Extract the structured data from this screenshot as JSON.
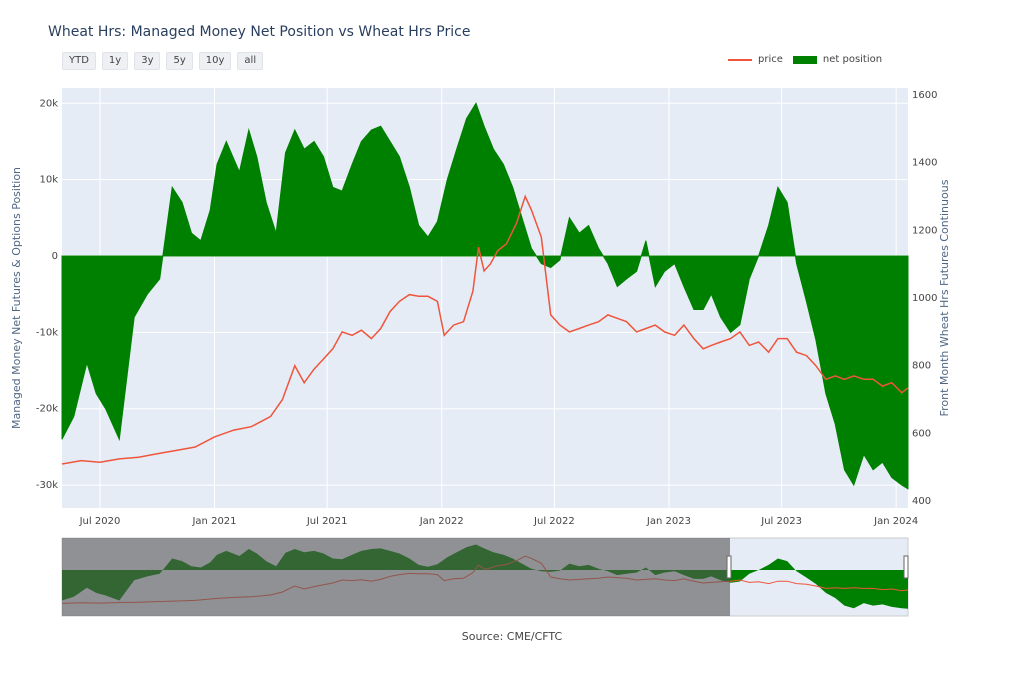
{
  "title": "Wheat Hrs: Managed Money Net Position vs Wheat Hrs Price",
  "range_buttons": [
    "YTD",
    "1y",
    "3y",
    "5y",
    "10y",
    "all"
  ],
  "legend": {
    "price": "price",
    "net": "net position"
  },
  "source": "Source: CME/CFTC",
  "colors": {
    "price": "#ef553b",
    "net": "#008000",
    "plot_bg": "#e5ecf6"
  },
  "chart_data": {
    "type": "line",
    "x_ticks": [
      "Jul 2020",
      "Jan 2021",
      "Jul 2021",
      "Jan 2022",
      "Jul 2022",
      "Jan 2023",
      "Jul 2023",
      "Jan 2024"
    ],
    "y_left": {
      "label": "Managed Money Net Futures & Options Position",
      "ticks": [
        "20k",
        "10k",
        "0",
        "-10k",
        "-20k",
        "-30k"
      ],
      "range": [
        -33000,
        22000
      ]
    },
    "y_right": {
      "label": "Front Month Wheat Hrs Futures Continuous",
      "ticks": [
        "1600",
        "1400",
        "1200",
        "1000",
        "800",
        "600",
        "400"
      ],
      "range": [
        380,
        1620
      ]
    },
    "x_range": [
      "2020-05-01",
      "2024-01-20"
    ],
    "series": [
      {
        "name": "net position",
        "axis": "left",
        "style": "area",
        "x": [
          "2020-05-01",
          "2020-05-20",
          "2020-06-10",
          "2020-06-25",
          "2020-07-10",
          "2020-08-01",
          "2020-08-25",
          "2020-09-15",
          "2020-10-05",
          "2020-10-25",
          "2020-11-10",
          "2020-11-25",
          "2020-12-10",
          "2020-12-25",
          "2021-01-05",
          "2021-01-20",
          "2021-02-10",
          "2021-02-25",
          "2021-03-10",
          "2021-03-25",
          "2021-04-10",
          "2021-04-25",
          "2021-05-10",
          "2021-05-25",
          "2021-06-10",
          "2021-06-25",
          "2021-07-10",
          "2021-07-25",
          "2021-08-10",
          "2021-08-25",
          "2021-09-10",
          "2021-09-25",
          "2021-10-10",
          "2021-10-25",
          "2021-11-10",
          "2021-11-25",
          "2021-12-10",
          "2021-12-25",
          "2022-01-10",
          "2022-01-25",
          "2022-02-10",
          "2022-02-25",
          "2022-03-10",
          "2022-03-25",
          "2022-04-10",
          "2022-04-25",
          "2022-05-10",
          "2022-05-25",
          "2022-06-10",
          "2022-06-25",
          "2022-07-10",
          "2022-07-25",
          "2022-08-10",
          "2022-08-25",
          "2022-09-10",
          "2022-09-25",
          "2022-10-10",
          "2022-10-25",
          "2022-11-10",
          "2022-11-25",
          "2022-12-10",
          "2022-12-25",
          "2023-01-10",
          "2023-01-25",
          "2023-02-10",
          "2023-02-25",
          "2023-03-10",
          "2023-03-25",
          "2023-04-10",
          "2023-04-25",
          "2023-05-10",
          "2023-05-25",
          "2023-06-10",
          "2023-06-25",
          "2023-07-10",
          "2023-07-25",
          "2023-08-10",
          "2023-08-25",
          "2023-09-10",
          "2023-09-25",
          "2023-10-10",
          "2023-10-25",
          "2023-11-10",
          "2023-11-25",
          "2023-12-10",
          "2023-12-25",
          "2024-01-10",
          "2024-01-20"
        ],
        "y": [
          -24000,
          -21000,
          -14000,
          -18000,
          -20000,
          -24000,
          -8000,
          -5000,
          -3000,
          9000,
          7000,
          3000,
          2000,
          6000,
          12000,
          15000,
          11000,
          16500,
          13000,
          7000,
          3000,
          13500,
          16500,
          14000,
          15000,
          13000,
          9000,
          8500,
          12000,
          15000,
          16500,
          17000,
          15000,
          13000,
          9000,
          4000,
          2500,
          4500,
          10000,
          14000,
          18000,
          20000,
          17000,
          14000,
          12000,
          9000,
          5000,
          1000,
          -1000,
          -1500,
          -500,
          5000,
          3000,
          4000,
          1000,
          -1000,
          -4000,
          -3000,
          -2000,
          2000,
          -4000,
          -2000,
          -1000,
          -4000,
          -7000,
          -7000,
          -5000,
          -8000,
          -10000,
          -9000,
          -3000,
          0,
          4000,
          9000,
          7000,
          -1000,
          -6000,
          -11000,
          -18000,
          -22000,
          -28000,
          -30000,
          -26000,
          -28000,
          -27000,
          -29000,
          -30000,
          -30500
        ]
      },
      {
        "name": "price",
        "axis": "right",
        "x": [
          "2020-05-01",
          "2020-06-01",
          "2020-07-01",
          "2020-08-01",
          "2020-09-01",
          "2020-10-01",
          "2020-11-01",
          "2020-12-01",
          "2021-01-01",
          "2021-02-01",
          "2021-03-01",
          "2021-04-01",
          "2021-04-20",
          "2021-05-10",
          "2021-05-25",
          "2021-06-10",
          "2021-06-25",
          "2021-07-10",
          "2021-07-25",
          "2021-08-10",
          "2021-08-25",
          "2021-09-10",
          "2021-09-25",
          "2021-10-10",
          "2021-10-25",
          "2021-11-10",
          "2021-11-25",
          "2021-12-10",
          "2021-12-25",
          "2022-01-05",
          "2022-01-20",
          "2022-02-05",
          "2022-02-20",
          "2022-03-01",
          "2022-03-10",
          "2022-03-20",
          "2022-04-01",
          "2022-04-15",
          "2022-05-01",
          "2022-05-15",
          "2022-05-25",
          "2022-06-10",
          "2022-06-25",
          "2022-07-10",
          "2022-07-25",
          "2022-08-10",
          "2022-08-25",
          "2022-09-10",
          "2022-09-25",
          "2022-10-10",
          "2022-10-25",
          "2022-11-10",
          "2022-11-25",
          "2022-12-10",
          "2022-12-25",
          "2023-01-10",
          "2023-01-25",
          "2023-02-10",
          "2023-02-25",
          "2023-03-10",
          "2023-03-25",
          "2023-04-10",
          "2023-04-25",
          "2023-05-10",
          "2023-05-25",
          "2023-06-10",
          "2023-06-25",
          "2023-07-10",
          "2023-07-25",
          "2023-08-10",
          "2023-08-25",
          "2023-09-10",
          "2023-09-25",
          "2023-10-10",
          "2023-10-25",
          "2023-11-10",
          "2023-11-25",
          "2023-12-10",
          "2023-12-25",
          "2024-01-10",
          "2024-01-20"
        ],
        "y": [
          510,
          520,
          515,
          525,
          530,
          540,
          550,
          560,
          590,
          610,
          620,
          650,
          700,
          800,
          750,
          790,
          820,
          850,
          900,
          890,
          905,
          880,
          910,
          960,
          990,
          1010,
          1005,
          1005,
          990,
          890,
          920,
          930,
          1020,
          1150,
          1080,
          1100,
          1140,
          1160,
          1220,
          1300,
          1260,
          1180,
          950,
          920,
          900,
          910,
          920,
          930,
          950,
          940,
          930,
          900,
          910,
          920,
          900,
          890,
          920,
          880,
          850,
          860,
          870,
          880,
          900,
          860,
          870,
          840,
          880,
          880,
          840,
          830,
          800,
          760,
          770,
          760,
          770,
          760,
          760,
          740,
          750,
          720,
          735
        ]
      }
    ]
  }
}
